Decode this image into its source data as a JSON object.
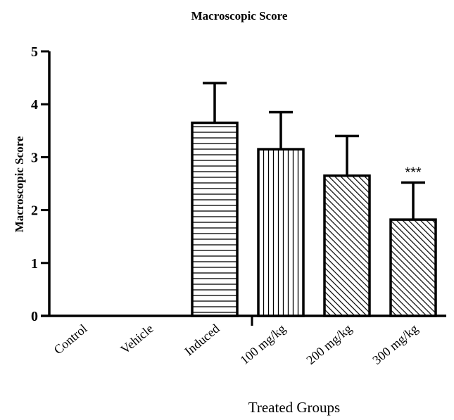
{
  "chart_data": {
    "type": "bar",
    "title": "Macroscopic Score",
    "xlabel": "Treated Groups",
    "ylabel": "Macroscopic Score",
    "ylim": [
      0,
      5
    ],
    "yticks": [
      "0",
      "1",
      "2",
      "3",
      "4",
      "5"
    ],
    "categories": [
      "Control",
      "Vehicle",
      "Induced",
      "100 mg/kg",
      "200 mg/kg",
      "300 mg/kg"
    ],
    "values": [
      0,
      0,
      3.65,
      3.15,
      2.65,
      1.82
    ],
    "error": [
      0,
      0,
      0.75,
      0.7,
      0.75,
      0.7
    ],
    "patterns": [
      "none",
      "none",
      "horizontal",
      "vertical",
      "diagonal",
      "diagonal"
    ],
    "annotations": [
      {
        "category": "300 mg/kg",
        "text": "***"
      }
    ],
    "grid": false
  }
}
